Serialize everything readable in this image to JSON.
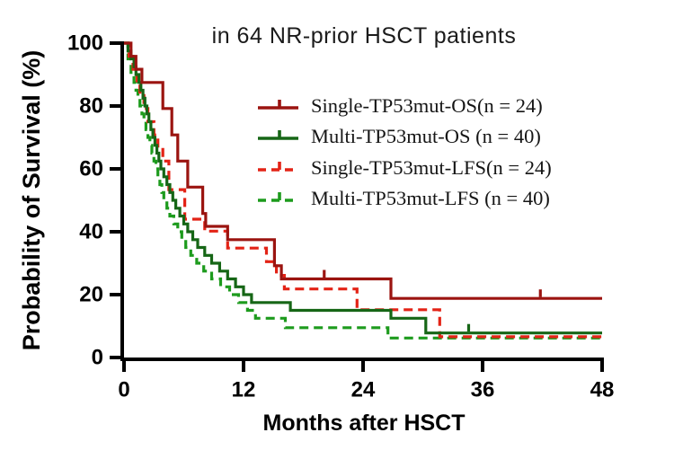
{
  "title": "in 64 NR-prior HSCT patients",
  "chart_data": {
    "type": "line",
    "subtype": "kaplan-meier-step",
    "title": "in 64 NR-prior HSCT patients",
    "xlabel": "Months after HSCT",
    "ylabel": "Probability of Survival (%)",
    "xlim": [
      0,
      48
    ],
    "ylim": [
      0,
      100
    ],
    "x_ticks": [
      0,
      12,
      24,
      36,
      48
    ],
    "y_ticks": [
      0,
      20,
      40,
      60,
      80,
      100
    ],
    "grid": "off",
    "legend_position": "upper-right-inside",
    "axis_color": "#000000",
    "series": [
      {
        "id": "single-os",
        "name": "Single-TP53mut-OS(n = 24)",
        "n": 24,
        "color": "#9b1410",
        "line_style": "solid",
        "steps": [
          [
            0,
            100
          ],
          [
            0.7,
            95.8
          ],
          [
            1.2,
            91.7
          ],
          [
            1.8,
            87.5
          ],
          [
            3.9,
            79.2
          ],
          [
            4.8,
            70.8
          ],
          [
            5.4,
            62.5
          ],
          [
            6.4,
            54.2
          ],
          [
            7.9,
            45.8
          ],
          [
            8.2,
            41.7
          ],
          [
            10.4,
            37.5
          ],
          [
            15.1,
            29.2
          ],
          [
            15.8,
            25.0
          ],
          [
            26.8,
            18.8
          ],
          [
            48,
            18.8
          ]
        ],
        "censor_marks": [
          [
            20.1,
            25.0
          ],
          [
            41.8,
            18.8
          ]
        ]
      },
      {
        "id": "multi-os",
        "name": "Multi-TP53mut-OS (n = 40)",
        "n": 40,
        "color": "#166616",
        "line_style": "solid",
        "steps": [
          [
            0,
            100
          ],
          [
            0.4,
            97.5
          ],
          [
            0.7,
            95.0
          ],
          [
            1.0,
            92.5
          ],
          [
            1.2,
            90.0
          ],
          [
            1.5,
            87.5
          ],
          [
            1.7,
            85.0
          ],
          [
            1.9,
            82.5
          ],
          [
            2.1,
            80.0
          ],
          [
            2.3,
            77.5
          ],
          [
            2.5,
            75.0
          ],
          [
            2.7,
            72.5
          ],
          [
            2.9,
            70.0
          ],
          [
            3.1,
            67.5
          ],
          [
            3.3,
            65.0
          ],
          [
            3.5,
            62.5
          ],
          [
            3.7,
            60.0
          ],
          [
            4.0,
            57.5
          ],
          [
            4.3,
            55.0
          ],
          [
            4.6,
            52.5
          ],
          [
            4.9,
            50.0
          ],
          [
            5.2,
            47.5
          ],
          [
            5.6,
            45.0
          ],
          [
            6.0,
            42.5
          ],
          [
            6.4,
            40.0
          ],
          [
            6.9,
            37.5
          ],
          [
            7.4,
            35.0
          ],
          [
            8.1,
            32.5
          ],
          [
            8.8,
            30.0
          ],
          [
            9.6,
            27.5
          ],
          [
            10.4,
            25.0
          ],
          [
            11.2,
            22.5
          ],
          [
            12.0,
            20.0
          ],
          [
            12.8,
            17.5
          ],
          [
            16.7,
            15.0
          ],
          [
            26.8,
            12.5
          ],
          [
            30.3,
            7.8
          ],
          [
            48,
            7.8
          ]
        ],
        "censor_marks": [
          [
            34.6,
            7.8
          ]
        ]
      },
      {
        "id": "single-lfs",
        "name": "Single-TP53mut-LFS(n = 24)",
        "n": 24,
        "color": "#e32316",
        "line_style": "dashed",
        "steps": [
          [
            0,
            100
          ],
          [
            0.5,
            95.8
          ],
          [
            0.9,
            91.7
          ],
          [
            1.3,
            87.5
          ],
          [
            1.6,
            83.3
          ],
          [
            2.0,
            79.2
          ],
          [
            2.4,
            75.0
          ],
          [
            3.0,
            70.8
          ],
          [
            3.4,
            66.7
          ],
          [
            3.9,
            62.5
          ],
          [
            4.5,
            53.4
          ],
          [
            6.1,
            44.0
          ],
          [
            8.1,
            40.2
          ],
          [
            10.4,
            34.8
          ],
          [
            14.3,
            30.5
          ],
          [
            15.3,
            26.1
          ],
          [
            16.1,
            21.8
          ],
          [
            23.4,
            15.2
          ],
          [
            31.7,
            6.6
          ],
          [
            48,
            6.6
          ]
        ],
        "censor_marks": []
      },
      {
        "id": "multi-lfs",
        "name": "Multi-TP53mut-LFS (n = 40)",
        "n": 40,
        "color": "#1d9b1d",
        "line_style": "dashed",
        "steps": [
          [
            0,
            100
          ],
          [
            0.4,
            95.0
          ],
          [
            0.7,
            90.0
          ],
          [
            1.0,
            87.5
          ],
          [
            1.2,
            85.0
          ],
          [
            1.4,
            82.5
          ],
          [
            1.6,
            80.0
          ],
          [
            1.8,
            77.5
          ],
          [
            2.0,
            75.0
          ],
          [
            2.2,
            72.5
          ],
          [
            2.4,
            70.0
          ],
          [
            2.6,
            67.5
          ],
          [
            2.8,
            65.0
          ],
          [
            3.0,
            62.5
          ],
          [
            3.2,
            60.0
          ],
          [
            3.4,
            57.5
          ],
          [
            3.6,
            55.0
          ],
          [
            3.8,
            52.5
          ],
          [
            4.0,
            50.0
          ],
          [
            4.3,
            47.5
          ],
          [
            4.6,
            45.0
          ],
          [
            5.0,
            42.5
          ],
          [
            5.4,
            40.0
          ],
          [
            5.8,
            37.5
          ],
          [
            6.2,
            35.0
          ],
          [
            6.7,
            32.5
          ],
          [
            7.3,
            30.0
          ],
          [
            8.0,
            27.5
          ],
          [
            8.8,
            25.0
          ],
          [
            9.7,
            22.5
          ],
          [
            10.6,
            20.0
          ],
          [
            11.5,
            17.5
          ],
          [
            12.4,
            15.0
          ],
          [
            13.2,
            12.5
          ],
          [
            16.2,
            9.5
          ],
          [
            26.5,
            6.2
          ],
          [
            48,
            6.2
          ]
        ],
        "censor_marks": []
      }
    ]
  }
}
